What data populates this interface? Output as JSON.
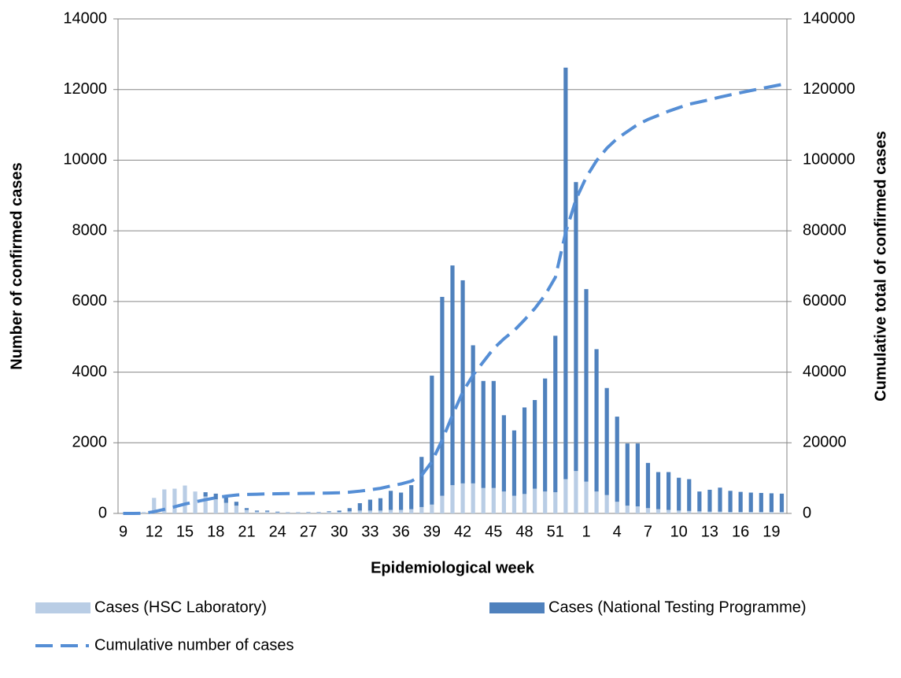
{
  "chart_data": {
    "type": "bar",
    "stacked": true,
    "x_label": "Epidemiological week",
    "y_label": "Number of confirmed cases",
    "y2_label": "Cumulative total of confirmed cases",
    "categories": [
      "9",
      null,
      null,
      "12",
      null,
      null,
      "15",
      null,
      null,
      "18",
      null,
      null,
      "21",
      null,
      null,
      "24",
      null,
      null,
      "27",
      null,
      null,
      "30",
      null,
      null,
      "33",
      null,
      null,
      "36",
      null,
      null,
      "39",
      null,
      null,
      "42",
      null,
      null,
      "45",
      null,
      null,
      "48",
      null,
      null,
      "51",
      null,
      null,
      "1",
      null,
      null,
      "4",
      null,
      null,
      "7",
      null,
      null,
      "10",
      null,
      null,
      "13",
      null,
      null,
      "16",
      null,
      null,
      "19",
      null
    ],
    "ylim": [
      0,
      14000
    ],
    "yticks": [
      0,
      2000,
      4000,
      6000,
      8000,
      10000,
      12000,
      14000
    ],
    "y2lim": [
      0,
      140000
    ],
    "y2ticks": [
      0,
      20000,
      40000,
      60000,
      80000,
      100000,
      120000,
      140000
    ],
    "grid": true,
    "legend": "bottom",
    "series": [
      {
        "name": "Cases (HSC Laboratory)",
        "type": "bar",
        "color": "#b9cde5",
        "values": [
          0,
          10,
          40,
          440,
          680,
          700,
          790,
          620,
          480,
          400,
          300,
          220,
          100,
          50,
          50,
          30,
          20,
          20,
          30,
          30,
          40,
          40,
          60,
          80,
          80,
          80,
          100,
          100,
          120,
          180,
          250,
          500,
          800,
          850,
          850,
          720,
          720,
          620,
          500,
          550,
          700,
          620,
          600,
          970,
          1200,
          900,
          620,
          520,
          330,
          220,
          200,
          150,
          120,
          100,
          80,
          70,
          60,
          50,
          50,
          40,
          40,
          40,
          40,
          40,
          40
        ]
      },
      {
        "name": "Cases (National Testing Programme)",
        "type": "bar",
        "color": "#4f81bd",
        "values": [
          0,
          0,
          0,
          0,
          0,
          0,
          0,
          0,
          120,
          160,
          150,
          110,
          50,
          30,
          30,
          20,
          10,
          10,
          10,
          10,
          20,
          40,
          90,
          210,
          310,
          350,
          540,
          490,
          680,
          1420,
          3650,
          5630,
          6220,
          5750,
          3910,
          3030,
          3030,
          2160,
          1850,
          2450,
          2510,
          3200,
          4430,
          11650,
          8180,
          5450,
          4030,
          3030,
          2410,
          1760,
          1780,
          1280,
          1050,
          1070,
          930,
          900,
          560,
          620,
          680,
          600,
          570,
          550,
          540,
          530,
          520
        ]
      },
      {
        "name": "Cumulative number of cases",
        "type": "line",
        "axis": "y2",
        "color": "#558ed5",
        "values": [
          0,
          10,
          50,
          490,
          1170,
          1870,
          2660,
          3280,
          3880,
          4440,
          4890,
          5220,
          5370,
          5450,
          5530,
          5580,
          5610,
          5640,
          5680,
          5720,
          5780,
          5860,
          6010,
          6300,
          6690,
          7120,
          7760,
          8350,
          9150,
          10750,
          14650,
          20780,
          27800,
          34400,
          39160,
          42910,
          46660,
          49440,
          51790,
          54790,
          58000,
          61820,
          66850,
          79470,
          88850,
          95200,
          99850,
          103400,
          106140,
          108120,
          110100,
          111530,
          112700,
          113870,
          114880,
          115850,
          116470,
          117140,
          117870,
          118510,
          119120,
          119710,
          120290,
          120860,
          121420
        ]
      }
    ]
  }
}
